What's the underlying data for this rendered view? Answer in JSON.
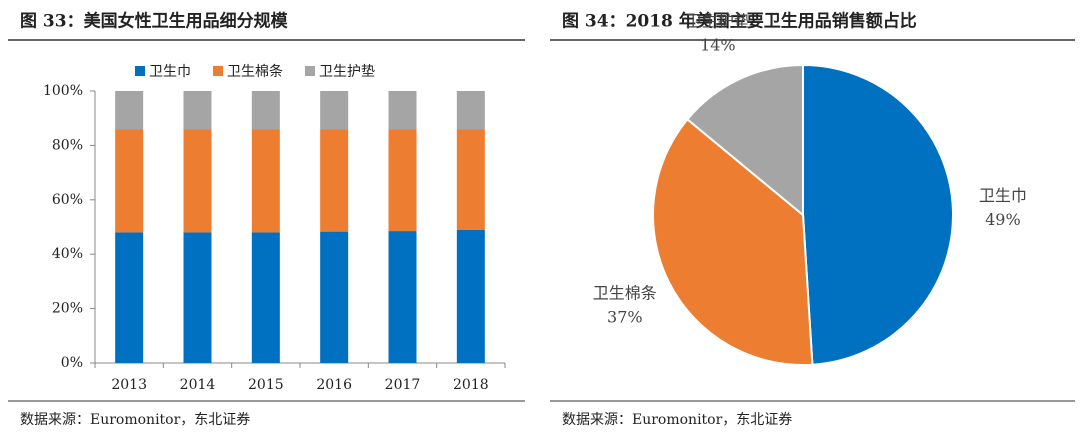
{
  "chart_data": [
    {
      "type": "bar",
      "stacked": true,
      "title": "图 33：美国女性卫生用品细分规模",
      "source": "数据来源：Euromonitor，东北证券",
      "categories": [
        "2013",
        "2014",
        "2015",
        "2016",
        "2017",
        "2018"
      ],
      "series": [
        {
          "name": "卫生巾",
          "color": "#0070c0",
          "values": [
            48,
            48,
            48,
            48.3,
            48.5,
            49
          ]
        },
        {
          "name": "卫生棉条",
          "color": "#ed7d31",
          "values": [
            38,
            38,
            38,
            37.7,
            37.5,
            37
          ]
        },
        {
          "name": "卫生护垫",
          "color": "#a5a5a5",
          "values": [
            14,
            14,
            14,
            14,
            14,
            14
          ]
        }
      ],
      "ylim": [
        0,
        100
      ],
      "yticks": [
        {
          "value": 0,
          "label": "0%"
        },
        {
          "value": 20,
          "label": "20%"
        },
        {
          "value": 40,
          "label": "40%"
        },
        {
          "value": 60,
          "label": "60%"
        },
        {
          "value": 80,
          "label": "80%"
        },
        {
          "value": 100,
          "label": "100%"
        }
      ],
      "legend": "top"
    },
    {
      "type": "pie",
      "title": "图 34：2018 年美国主要卫生用品销售额占比",
      "source": "数据来源：Euromonitor，东北证券",
      "categories": [
        "卫生巾",
        "卫生棉条",
        "卫生护垫"
      ],
      "values": [
        49,
        37,
        14
      ],
      "value_labels": [
        "49%",
        "37%",
        "14%"
      ],
      "colors": [
        "#0070c0",
        "#ed7d31",
        "#a5a5a5"
      ]
    }
  ]
}
